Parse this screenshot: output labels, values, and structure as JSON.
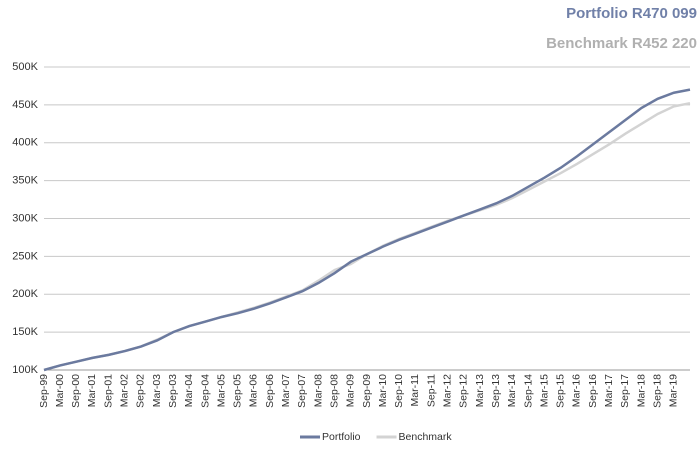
{
  "chart_data": {
    "type": "line",
    "title": "Portfolio R470 099",
    "subtitle": "Benchmark R452 220",
    "categories": [
      "Sep-99",
      "Mar-00",
      "Sep-00",
      "Mar-01",
      "Sep-01",
      "Mar-02",
      "Sep-02",
      "Mar-03",
      "Sep-03",
      "Mar-04",
      "Sep-04",
      "Mar-05",
      "Sep-05",
      "Mar-06",
      "Sep-06",
      "Mar-07",
      "Sep-07",
      "Mar-08",
      "Sep-08",
      "Mar-09",
      "Sep-09",
      "Mar-10",
      "Sep-10",
      "Mar-11",
      "Sep-11",
      "Mar-12",
      "Sep-12",
      "Mar-13",
      "Sep-13",
      "Mar-14",
      "Sep-14",
      "Mar-15",
      "Sep-15",
      "Mar-16",
      "Sep-16",
      "Mar-17",
      "Sep-17",
      "Mar-18",
      "Sep-18",
      "Mar-19",
      null
    ],
    "series": [
      {
        "name": "Portfolio",
        "color": "#6b7a9f",
        "values": [
          100000,
          106000,
          111000,
          116000,
          120000,
          125000,
          131000,
          139000,
          150000,
          158000,
          164000,
          170000,
          175000,
          181000,
          188000,
          196000,
          204000,
          215000,
          228000,
          243000,
          253000,
          263000,
          272000,
          280000,
          288000,
          296000,
          304000,
          312000,
          320000,
          330000,
          342000,
          354000,
          367000,
          382000,
          398000,
          414000,
          430000,
          446000,
          458000,
          466000,
          470099
        ]
      },
      {
        "name": "Benchmark",
        "color": "#d3d3d3",
        "values": [
          100000,
          106000,
          111000,
          116000,
          120000,
          125000,
          131000,
          140000,
          150000,
          158000,
          164000,
          170000,
          176000,
          182000,
          189000,
          197000,
          205000,
          218000,
          232000,
          240000,
          253000,
          264000,
          273000,
          281000,
          289000,
          297000,
          304000,
          311000,
          318000,
          327000,
          338000,
          349000,
          360000,
          372000,
          385000,
          398000,
          412000,
          425000,
          438000,
          448000,
          452220
        ]
      }
    ],
    "ylim": [
      100000,
      500000
    ],
    "yticks": [
      {
        "value": 100000,
        "label": "100K"
      },
      {
        "value": 150000,
        "label": "150K"
      },
      {
        "value": 200000,
        "label": "200K"
      },
      {
        "value": 250000,
        "label": "250K"
      },
      {
        "value": 300000,
        "label": "300K"
      },
      {
        "value": 350000,
        "label": "350K"
      },
      {
        "value": 400000,
        "label": "400K"
      },
      {
        "value": 450000,
        "label": "450K"
      },
      {
        "value": 500000,
        "label": "500K"
      }
    ],
    "grid": true,
    "legend": "bottom"
  }
}
